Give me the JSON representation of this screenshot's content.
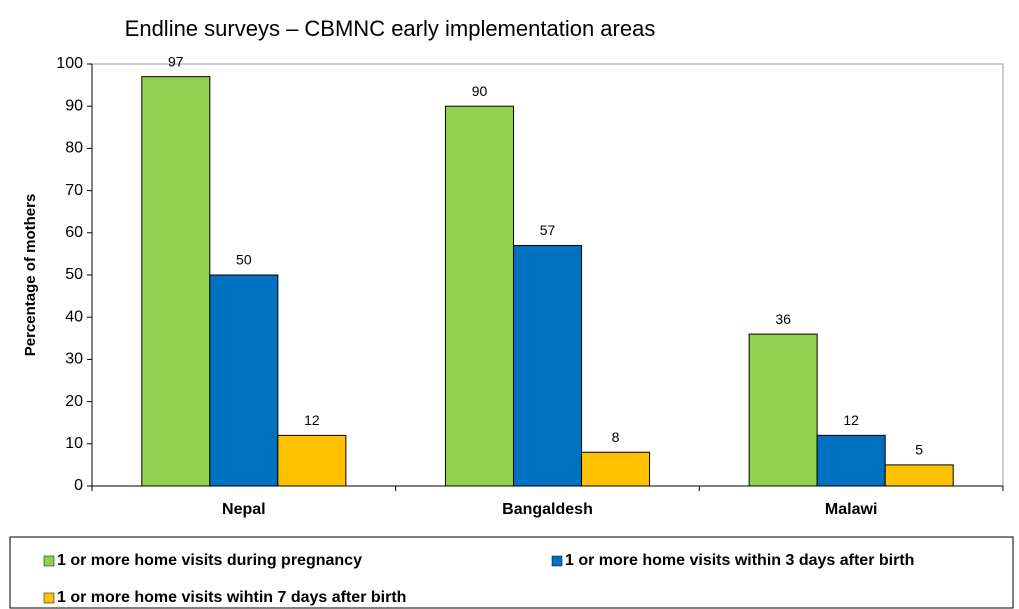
{
  "chart_data": {
    "type": "bar",
    "title": "Endline surveys – CBMNC early implementation areas",
    "y_label": "Percentage of mothers",
    "categories": [
      "Nepal",
      "Bangaldesh",
      "Malawi"
    ],
    "series": [
      {
        "name": "1 or more home visits during pregnancy",
        "color": "#92d050",
        "values": [
          97,
          90,
          36
        ]
      },
      {
        "name": "1 or more home visits within 3 days after birth",
        "color": "#0070c0",
        "values": [
          50,
          57,
          12
        ]
      },
      {
        "name": "1 or more home visits wihtin 7 days after birth",
        "color": "#ffc000",
        "values": [
          12,
          8,
          5
        ]
      }
    ],
    "ylim": [
      0,
      100
    ],
    "yticks": [
      0,
      10,
      20,
      30,
      40,
      50,
      60,
      70,
      80,
      90,
      100
    ],
    "grid": false,
    "legend": "bottom"
  }
}
